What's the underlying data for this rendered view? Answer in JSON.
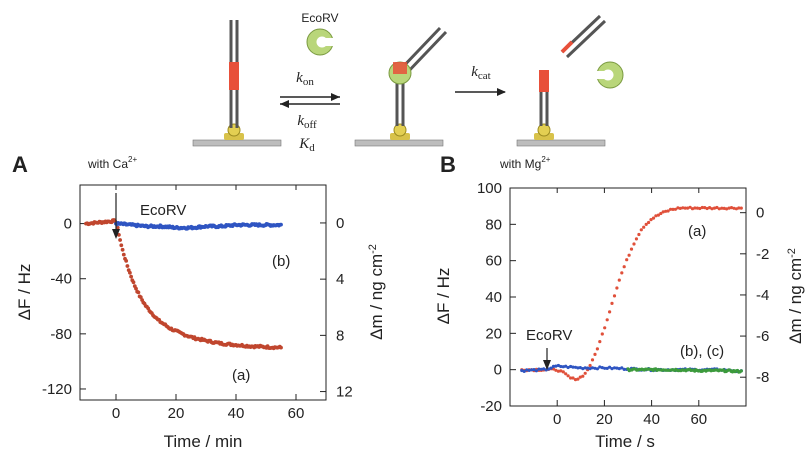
{
  "scheme": {
    "enzyme_label": "EcoRV",
    "kon": "k",
    "kon_sub": "on",
    "koff": "k",
    "koff_sub": "off",
    "kd": "K",
    "kd_sub": "d",
    "kcat": "k",
    "kcat_sub": "cat",
    "colors": {
      "dna": "#555555",
      "cleavage_site": "#e8503a",
      "enzyme": "#b9d67a",
      "sensor": "#d8c24a"
    }
  },
  "panel_a": {
    "letter": "A",
    "condition": "with Ca",
    "condition_sup": "2+",
    "annotation": "EcoRV",
    "label_a": "(a)",
    "label_b": "(b)",
    "xlabel": "Time / min",
    "ylabel_left": "ΔF / Hz",
    "ylabel_right": "Δm / ng cm",
    "ylabel_right_sup": "-2"
  },
  "panel_b": {
    "letter": "B",
    "condition": "with Mg",
    "condition_sup": "2+",
    "annotation": "EcoRV",
    "label_a": "(a)",
    "label_bc": "(b), (c)",
    "xlabel": "Time / s",
    "ylabel_left": "ΔF / Hz",
    "ylabel_right": "Δm / ng cm",
    "ylabel_right_sup": "-2"
  },
  "chart_data": [
    {
      "type": "line",
      "xlabel": "Time / min",
      "ylabel": "ΔF / Hz",
      "y2label": "Δm / ng cm-2",
      "xlim": [
        -12,
        70
      ],
      "ylim": [
        -128,
        28
      ],
      "y2lim": [
        -2.7,
        12.6
      ],
      "xticks": [
        0,
        20,
        40,
        60
      ],
      "yticks": [
        0,
        -40,
        -80,
        -120
      ],
      "y2ticks": [
        0,
        4,
        8,
        12
      ],
      "annotations": [
        {
          "text": "EcoRV",
          "x": 0
        }
      ],
      "series": [
        {
          "name": "(a)",
          "color": "#c0462e",
          "x": [
            -10,
            -5,
            0,
            2,
            4,
            6,
            8,
            10,
            14,
            18,
            22,
            26,
            30,
            35,
            40,
            45,
            50,
            55
          ],
          "y": [
            0,
            1,
            2,
            -18,
            -32,
            -44,
            -53,
            -60,
            -70,
            -76,
            -80,
            -83,
            -85,
            -87,
            -88,
            -89,
            -89.5,
            -90
          ]
        },
        {
          "name": "(b)",
          "color": "#2f55c2",
          "x": [
            0,
            5,
            10,
            15,
            20,
            25,
            30,
            35,
            40,
            45,
            50,
            55
          ],
          "y": [
            0,
            -1,
            -2,
            -2,
            -3,
            -3,
            -2,
            -2,
            -1,
            -1,
            -1,
            -1
          ]
        }
      ]
    },
    {
      "type": "scatter",
      "xlabel": "Time / s",
      "ylabel": "ΔF / Hz",
      "y2label": "Δm / ng cm-2",
      "xlim": [
        -20,
        80
      ],
      "ylim": [
        -20,
        100
      ],
      "y2lim": [
        1.2,
        -9.4
      ],
      "xticks": [
        0,
        20,
        40,
        60
      ],
      "yticks": [
        100,
        80,
        60,
        40,
        20,
        0,
        -20
      ],
      "y2ticks": [
        -8,
        -6,
        -4,
        -2,
        0
      ],
      "annotations": [
        {
          "text": "EcoRV",
          "x": 0
        }
      ],
      "series": [
        {
          "name": "(a)",
          "color": "#e0503a",
          "x": [
            -15,
            -5,
            0,
            3,
            6,
            9,
            12,
            15,
            18,
            21,
            24,
            27,
            30,
            33,
            36,
            40,
            44,
            48,
            52,
            56,
            60,
            66,
            72,
            78
          ],
          "y": [
            0,
            0,
            0,
            -2,
            -5,
            -5,
            -2,
            5,
            15,
            27,
            40,
            52,
            62,
            71,
            78,
            83,
            86,
            88,
            89,
            89,
            89,
            89,
            89,
            89
          ]
        },
        {
          "name": "(b), (c)",
          "color": "#2f55c2",
          "x": [
            -15,
            -5,
            0,
            10,
            20,
            30,
            40,
            50,
            60,
            70,
            78
          ],
          "y": [
            -0.5,
            0,
            2,
            1,
            1,
            0.5,
            0,
            0,
            0,
            0,
            -1
          ]
        },
        {
          "color": "#3c9a3c",
          "x": [
            30,
            40,
            50,
            60,
            70,
            78
          ],
          "y": [
            0,
            0,
            0,
            -0.5,
            -0.5,
            -1
          ]
        }
      ]
    }
  ]
}
